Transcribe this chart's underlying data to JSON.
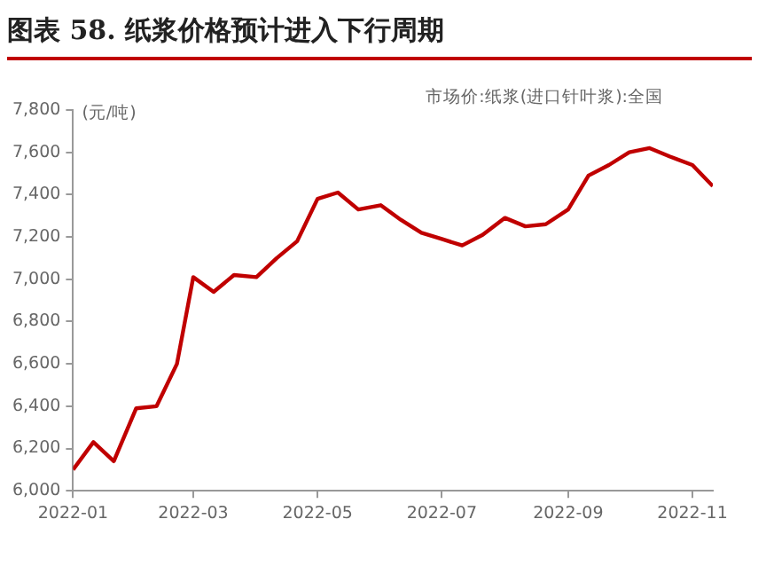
{
  "chart_data": {
    "type": "line",
    "title": "图表 58. 纸浆价格预计进入下行周期",
    "subtitle": "市场价:纸浆(进口针叶浆):全国",
    "ylabel": "(元/吨)",
    "x": [
      "2022-01-01",
      "2022-01-11",
      "2022-01-21",
      "2022-02-01",
      "2022-02-11",
      "2022-02-21",
      "2022-03-01",
      "2022-03-11",
      "2022-03-21",
      "2022-04-01",
      "2022-04-11",
      "2022-04-21",
      "2022-05-01",
      "2022-05-11",
      "2022-05-21",
      "2022-06-01",
      "2022-06-11",
      "2022-06-21",
      "2022-07-01",
      "2022-07-11",
      "2022-07-21",
      "2022-08-01",
      "2022-08-11",
      "2022-08-21",
      "2022-09-01",
      "2022-09-11",
      "2022-09-21",
      "2022-10-01",
      "2022-10-11",
      "2022-10-21",
      "2022-11-01",
      "2022-11-11"
    ],
    "series": [
      {
        "color": "#c00000",
        "values": [
          6100,
          6230,
          6140,
          6390,
          6400,
          6600,
          7010,
          6940,
          7020,
          7010,
          7100,
          7180,
          7380,
          7410,
          7330,
          7350,
          7280,
          7220,
          7190,
          7160,
          7210,
          7290,
          7250,
          7260,
          7330,
          7490,
          7540,
          7600,
          7620,
          7580,
          7540,
          7440
        ]
      }
    ],
    "xlim": [
      "2022-01-01",
      "2022-11-11"
    ],
    "xticks": [
      {
        "value": "2022-01-01",
        "label": "2022-01"
      },
      {
        "value": "2022-03-01",
        "label": "2022-03"
      },
      {
        "value": "2022-05-01",
        "label": "2022-05"
      },
      {
        "value": "2022-07-01",
        "label": "2022-07"
      },
      {
        "value": "2022-09-01",
        "label": "2022-09"
      },
      {
        "value": "2022-11-01",
        "label": "2022-11"
      }
    ],
    "ylim": [
      6000,
      7800
    ],
    "yticks": [
      {
        "value": 6000,
        "label": "6,000"
      },
      {
        "value": 6200,
        "label": "6,200"
      },
      {
        "value": 6400,
        "label": "6,400"
      },
      {
        "value": 6600,
        "label": "6,600"
      },
      {
        "value": 6800,
        "label": "6,800"
      },
      {
        "value": 7000,
        "label": "7,000"
      },
      {
        "value": 7200,
        "label": "7,200"
      },
      {
        "value": 7400,
        "label": "7,400"
      },
      {
        "value": 7600,
        "label": "7,600"
      },
      {
        "value": 7800,
        "label": "7,800"
      }
    ],
    "grid": false,
    "legend": false,
    "marker": "none",
    "line_style": "solid"
  }
}
